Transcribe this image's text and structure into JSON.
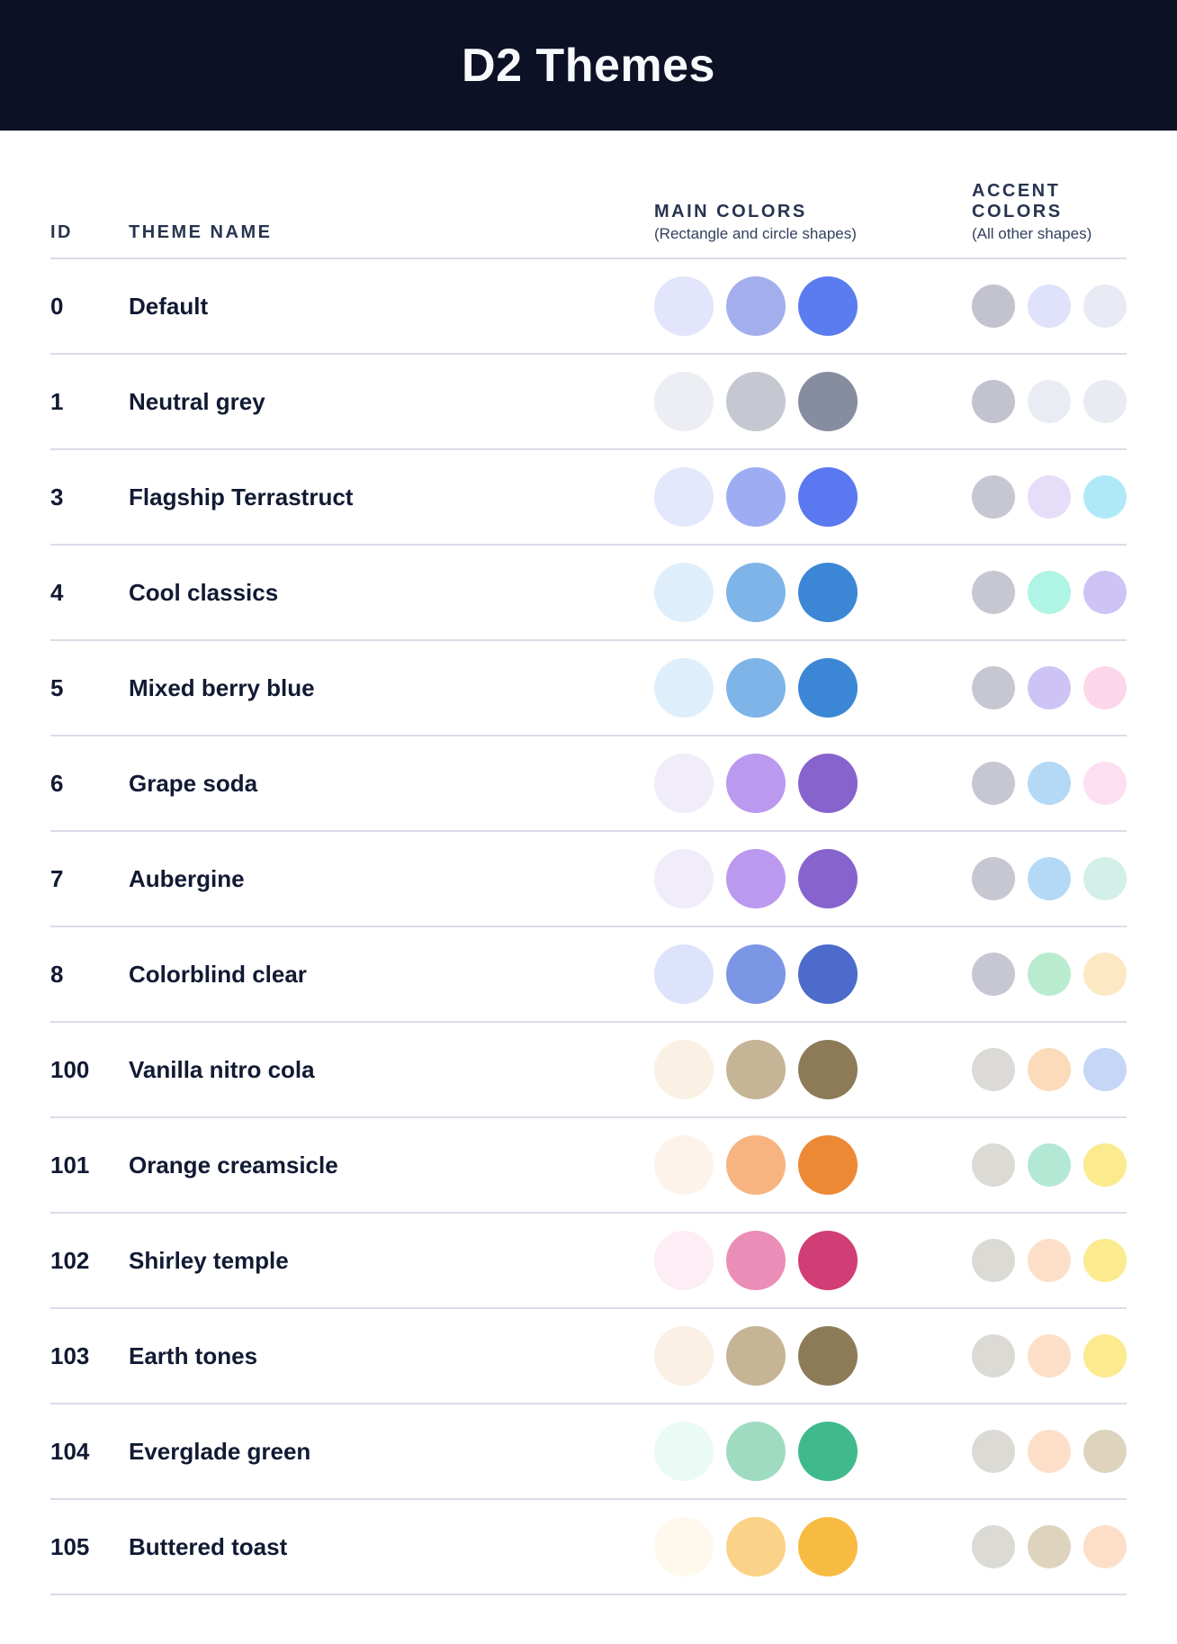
{
  "header": {
    "title": "D2 Themes",
    "background": "#0D1126",
    "title_color": "#F7F9FC"
  },
  "table": {
    "columns": {
      "id_label": "ID",
      "name_label": "THEME NAME",
      "main_label": "MAIN COLORS",
      "main_sublabel": "(Rectangle and circle shapes)",
      "accent_label": "ACCENT COLORS",
      "accent_sublabel": "(All other shapes)"
    },
    "rows": [
      {
        "id": "0",
        "name": "Default",
        "main": [
          "#E2E5FB",
          "#A2AFEC",
          "#5B7CEE"
        ],
        "accent": [
          "#C2C3CF",
          "#DFE2FA",
          "#E9EBF4"
        ]
      },
      {
        "id": "1",
        "name": "Neutral grey",
        "main": [
          "#ECEEF3",
          "#C5C7D1",
          "#878DA0"
        ],
        "accent": [
          "#C2C3CF",
          "#EAECF4",
          "#E9EBF3"
        ]
      },
      {
        "id": "3",
        "name": "Flagship Terrastruct",
        "main": [
          "#E4E8FC",
          "#9EADF3",
          "#5A78F0"
        ],
        "accent": [
          "#C6C7D1",
          "#E6DDF8",
          "#AFE9F8"
        ]
      },
      {
        "id": "4",
        "name": "Cool classics",
        "main": [
          "#DEEEFA",
          "#7FB4E8",
          "#3B87D6"
        ],
        "accent": [
          "#C6C7D1",
          "#AFF4E5",
          "#CEC3F5"
        ]
      },
      {
        "id": "5",
        "name": "Mixed berry blue",
        "main": [
          "#DEEEFA",
          "#7FB4E8",
          "#3B87D6"
        ],
        "accent": [
          "#C6C7D1",
          "#CEC3F5",
          "#FBD7E9"
        ]
      },
      {
        "id": "6",
        "name": "Grape soda",
        "main": [
          "#F1ECFA",
          "#BB99EE",
          "#8763CE"
        ],
        "accent": [
          "#C6C7D1",
          "#B3D9F7",
          "#FCDFF0"
        ]
      },
      {
        "id": "7",
        "name": "Aubergine",
        "main": [
          "#F1ECFA",
          "#BB99EE",
          "#8763CE"
        ],
        "accent": [
          "#C6C7D1",
          "#B3D9F7",
          "#D2F0E8"
        ]
      },
      {
        "id": "8",
        "name": "Colorblind clear",
        "main": [
          "#DDE3FA",
          "#7B96E4",
          "#4C6BCA"
        ],
        "accent": [
          "#C6C7D2",
          "#B9EBCF",
          "#FCE9C4"
        ]
      },
      {
        "id": "100",
        "name": "Vanilla nitro cola",
        "main": [
          "#FAF0E4",
          "#C6B496",
          "#8D7B58"
        ],
        "accent": [
          "#DBDAD7",
          "#FCDBBB",
          "#C6D6F7"
        ]
      },
      {
        "id": "101",
        "name": "Orange creamsicle",
        "main": [
          "#FEF3EB",
          "#F8B480",
          "#ED8835"
        ],
        "accent": [
          "#DBDAD5",
          "#B3E8D5",
          "#FBEB8E"
        ]
      },
      {
        "id": "102",
        "name": "Shirley temple",
        "main": [
          "#FDEDF4",
          "#EA8EB8",
          "#D13D75"
        ],
        "accent": [
          "#DBDAD5",
          "#FDDFC9",
          "#FBEB8E"
        ]
      },
      {
        "id": "103",
        "name": "Earth tones",
        "main": [
          "#FAF0E4",
          "#C6B496",
          "#8D7B58"
        ],
        "accent": [
          "#DBDAD5",
          "#FDDFC9",
          "#FBEB8E"
        ]
      },
      {
        "id": "104",
        "name": "Everglade green",
        "main": [
          "#EAFBF5",
          "#9FDBC1",
          "#40BA8C"
        ],
        "accent": [
          "#DBDAD5",
          "#FDDFC9",
          "#DED4BE"
        ]
      },
      {
        "id": "105",
        "name": "Buttered toast",
        "main": [
          "#FEF9EC",
          "#FBD388",
          "#F7BB41"
        ],
        "accent": [
          "#DBDAD5",
          "#DED4BE",
          "#FDDFC9"
        ]
      }
    ]
  }
}
